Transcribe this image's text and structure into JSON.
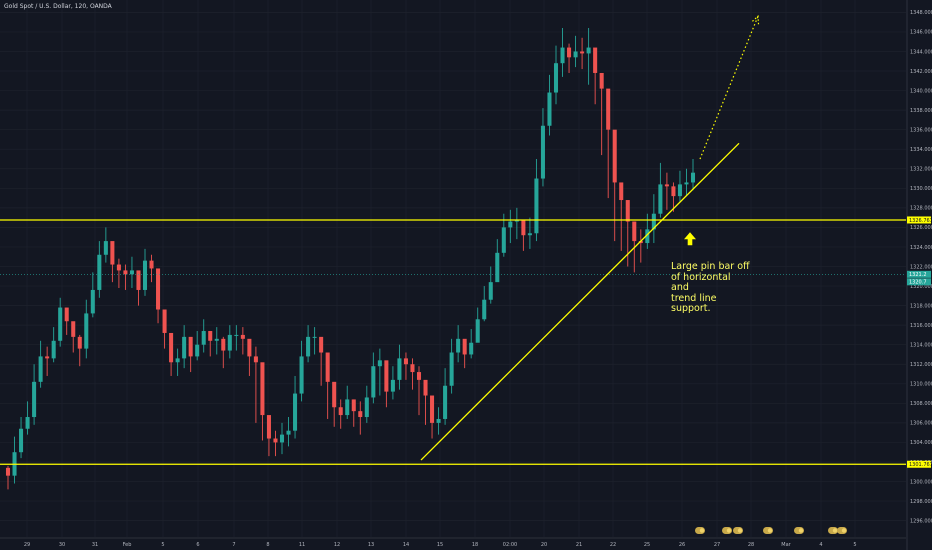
{
  "header": {
    "title": "Gold Spot / U.S. Dollar, 120, OANDA"
  },
  "annotation": {
    "lines": [
      "Large pin bar off",
      "of horizontal and",
      "trend line",
      "support."
    ]
  },
  "colors": {
    "background": "#131722",
    "up": "#26a69a",
    "down": "#ef5350",
    "line": "#ffff00",
    "text": "#b2b5be",
    "grid": "#1e222d"
  },
  "chart_data": {
    "type": "candlestick",
    "symbol": "Gold Spot / U.S. Dollar",
    "interval": "120",
    "source": "OANDA",
    "ylim": [
      1295,
      1349
    ],
    "y_ticks": [
      "1296.000",
      "1298.000",
      "1300.000",
      "1302.000",
      "1304.000",
      "1306.000",
      "1308.000",
      "1310.000",
      "1312.000",
      "1314.000",
      "1316.000",
      "1318.000",
      "1320.000",
      "1322.000",
      "1324.000",
      "1326.000",
      "1328.000",
      "1330.000",
      "1332.000",
      "1334.000",
      "1336.000",
      "1338.000",
      "1340.000",
      "1342.000",
      "1344.000",
      "1346.000",
      "1348.000"
    ],
    "x_ticks": [
      "29",
      "30",
      "31",
      "Feb",
      "5",
      "6",
      "7",
      "8",
      "11",
      "12",
      "13",
      "14",
      "15",
      "18",
      "02:00",
      "20",
      "21",
      "22",
      "25",
      "26",
      "27",
      "28",
      "Mar",
      "4",
      "5"
    ],
    "horizontal_levels": [
      {
        "price": 1326.761,
        "label": "1326.761"
      },
      {
        "price": 1301.767,
        "label": "1301.767"
      }
    ],
    "current_price": {
      "price": 1321.2,
      "labels": [
        "1321.2",
        "1320.7"
      ]
    },
    "trend_line": {
      "from": [
        "14",
        1302.2
      ],
      "to": [
        "27",
        1334.6
      ]
    },
    "projection": {
      "from": [
        "25",
        1333.0
      ],
      "to": [
        "27",
        1347.6
      ],
      "style": "dotted-arrow"
    },
    "arrow": {
      "at": [
        "25",
        1325.5
      ],
      "direction": "up"
    },
    "closes": [
      1300.6,
      1303,
      1305.4,
      1306.6,
      1310.2,
      1312.8,
      1312.6,
      1314.4,
      1317.8,
      1316.4,
      1314.8,
      1313.6,
      1317.2,
      1319.6,
      1323.2,
      1324.6,
      1322.2,
      1321.6,
      1321.2,
      1321.6,
      1319.6,
      1322.6,
      1321.8,
      1317.6,
      1315.2,
      1312.2,
      1312.6,
      1314.8,
      1312.8,
      1314,
      1315.4,
      1314.4,
      1314.6,
      1313.4,
      1315,
      1315,
      1314.6,
      1312.8,
      1312.2,
      1306.8,
      1304.4,
      1304,
      1304.8,
      1305.2,
      1309,
      1312.8,
      1314.8,
      1314.8,
      1313.2,
      1310.2,
      1307.6,
      1306.8,
      1308.4,
      1307.2,
      1306.6,
      1308.6,
      1311.8,
      1312.4,
      1309.2,
      1310.4,
      1312.6,
      1312,
      1311.2,
      1310.4,
      1308.8,
      1306,
      1306.4,
      1309.8,
      1313.2,
      1314.6,
      1313,
      1314.2,
      1316.6,
      1318.6,
      1320.4,
      1323.4,
      1326,
      1326.6,
      1326.8,
      1325.2,
      1325.4,
      1331,
      1336.4,
      1339.8,
      1342.8,
      1344.4,
      1343.4,
      1344,
      1343.8,
      1344.4,
      1341.8,
      1340.2,
      1336,
      1330.6,
      1328.8,
      1326.6,
      1324.6,
      1324.4,
      1325.8,
      1327.4,
      1330.4,
      1330.2,
      1329.2,
      1330.4,
      1330.6,
      1331.6
    ],
    "highs": [
      1301.6,
      1304.6,
      1306.6,
      1308.2,
      1312,
      1314.4,
      1313.8,
      1315.8,
      1318.8,
      1317.8,
      1316,
      1315,
      1318.6,
      1321.4,
      1324.6,
      1326,
      1323.6,
      1322.8,
      1322.2,
      1323,
      1320.8,
      1323.8,
      1323.2,
      1319,
      1316.8,
      1313.8,
      1313.6,
      1316,
      1314.2,
      1315.4,
      1316.6,
      1315.4,
      1315.8,
      1314.8,
      1316,
      1316,
      1315.8,
      1314,
      1313.8,
      1308.8,
      1305.8,
      1305.2,
      1306,
      1306.6,
      1310.8,
      1314.4,
      1316,
      1315.8,
      1314.4,
      1311.8,
      1309,
      1308.4,
      1309.8,
      1308.4,
      1308.2,
      1309.8,
      1313.2,
      1313.6,
      1310.6,
      1311.8,
      1314,
      1313.2,
      1312.6,
      1311.8,
      1310.2,
      1307.4,
      1307.6,
      1311.6,
      1314.6,
      1316,
      1314.4,
      1315.6,
      1317.8,
      1320,
      1322,
      1324.8,
      1327.4,
      1327.8,
      1328,
      1326.6,
      1327,
      1333,
      1338.2,
      1341.6,
      1344.6,
      1346.4,
      1344.8,
      1345.6,
      1345.4,
      1346.4,
      1343.2,
      1341.8,
      1337.6,
      1332.6,
      1330.4,
      1328.2,
      1326.6,
      1325.8,
      1327.4,
      1329.4,
      1332.6,
      1331.6,
      1330.6,
      1331.8,
      1332,
      1333
    ],
    "lows": [
      1299.2,
      1299.8,
      1302.4,
      1304.8,
      1305.8,
      1309.6,
      1310.8,
      1312.2,
      1313.8,
      1315,
      1313.2,
      1311.8,
      1312.6,
      1316.8,
      1318.8,
      1322.4,
      1320.4,
      1319.8,
      1319.6,
      1319.8,
      1318,
      1319,
      1320.4,
      1316.2,
      1313.6,
      1310.8,
      1310.8,
      1311.6,
      1311.2,
      1312.4,
      1313.2,
      1312.8,
      1313,
      1311.6,
      1312.6,
      1313.4,
      1313,
      1310.8,
      1306,
      1304.2,
      1302.6,
      1302.6,
      1302.8,
      1303.6,
      1304.4,
      1308.2,
      1312.2,
      1313,
      1309.8,
      1306.4,
      1305.6,
      1305.4,
      1306.4,
      1305.6,
      1304.8,
      1306,
      1308,
      1308.8,
      1307.6,
      1308.4,
      1309.4,
      1310.4,
      1309.4,
      1306.8,
      1305.8,
      1304.4,
      1304.8,
      1305.8,
      1309,
      1312.2,
      1311.6,
      1312.6,
      1314.8,
      1316.4,
      1318.2,
      1320.6,
      1323,
      1324.4,
      1324.8,
      1323.6,
      1323.8,
      1324.6,
      1330.2,
      1335.4,
      1338.6,
      1341.4,
      1341.8,
      1342.4,
      1342.2,
      1340.6,
      1338.6,
      1333.4,
      1329,
      1324.6,
      1323.6,
      1322,
      1321.4,
      1322.4,
      1323.8,
      1324.4,
      1327,
      1327.8,
      1327.6,
      1328.6,
      1329.2,
      1329.8
    ]
  }
}
